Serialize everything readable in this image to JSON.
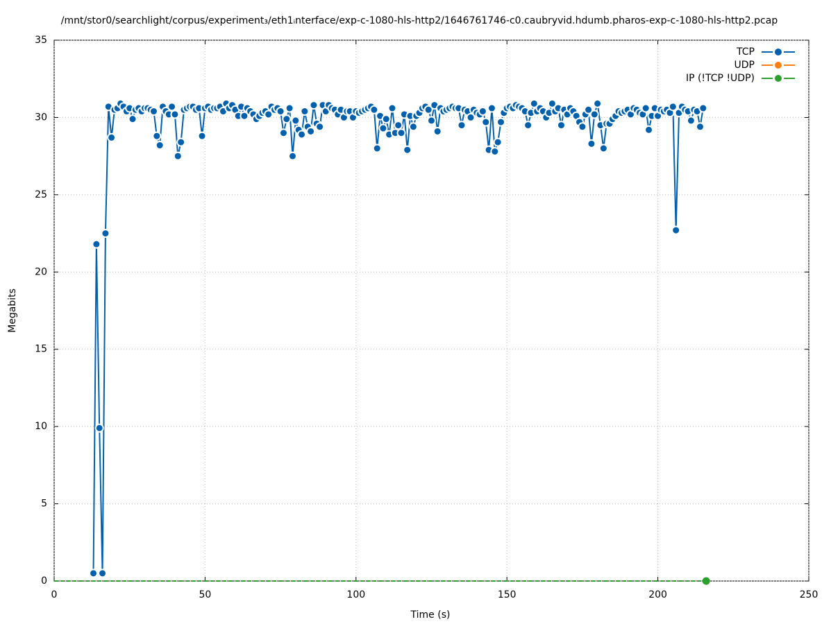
{
  "chart_data": {
    "type": "line",
    "title": "/mnt/stor0/searchlight/corpus/experiment₃/eth1ᵢnterface/exp-c-1080-hls-http2/1646761746-c0.caubryvid.hdumb.pharos-exp-c-1080-hls-http2.pcap",
    "x_label": "Time (s)",
    "y_label": "Megabits",
    "xlim": [
      0,
      250
    ],
    "xticks": [
      0,
      50,
      100,
      150,
      200,
      250
    ],
    "ylim": [
      0,
      35
    ],
    "yticks": [
      0,
      5,
      10,
      15,
      20,
      25,
      30,
      35
    ],
    "grid": true,
    "legend": "top-right",
    "series": [
      {
        "name": "TCP",
        "color": "#0060ad",
        "x": [
          13,
          14,
          15,
          16,
          17,
          18,
          19,
          20,
          21,
          22,
          23,
          24,
          25,
          26,
          27,
          28,
          29,
          30,
          31,
          32,
          33,
          34,
          35,
          36,
          37,
          38,
          39,
          40,
          41,
          42,
          43,
          44,
          45,
          46,
          47,
          48,
          49,
          50,
          51,
          52,
          53,
          54,
          55,
          56,
          57,
          58,
          59,
          60,
          61,
          62,
          63,
          64,
          65,
          66,
          67,
          68,
          69,
          70,
          71,
          72,
          73,
          74,
          75,
          76,
          77,
          78,
          79,
          80,
          81,
          82,
          83,
          84,
          85,
          86,
          87,
          88,
          89,
          90,
          91,
          92,
          93,
          94,
          95,
          96,
          97,
          98,
          99,
          100,
          101,
          102,
          103,
          104,
          105,
          106,
          107,
          108,
          109,
          110,
          111,
          112,
          113,
          114,
          115,
          116,
          117,
          118,
          119,
          120,
          121,
          122,
          123,
          124,
          125,
          126,
          127,
          128,
          129,
          130,
          131,
          132,
          133,
          134,
          135,
          136,
          137,
          138,
          139,
          140,
          141,
          142,
          143,
          144,
          145,
          146,
          147,
          148,
          149,
          150,
          151,
          152,
          153,
          154,
          155,
          156,
          157,
          158,
          159,
          160,
          161,
          162,
          163,
          164,
          165,
          166,
          167,
          168,
          169,
          170,
          171,
          172,
          173,
          174,
          175,
          176,
          177,
          178,
          179,
          180,
          181,
          182,
          183,
          184,
          185,
          186,
          187,
          188,
          189,
          190,
          191,
          192,
          193,
          194,
          195,
          196,
          197,
          198,
          199,
          200,
          201,
          202,
          203,
          204,
          205,
          206,
          207,
          208,
          209,
          210,
          211,
          212,
          213,
          214,
          215
        ],
        "values": [
          0.5,
          21.8,
          9.9,
          0.5,
          22.5,
          30.7,
          28.7,
          30.5,
          30.6,
          30.9,
          30.7,
          30.4,
          30.6,
          29.9,
          30.5,
          30.6,
          30.4,
          30.6,
          30.6,
          30.5,
          30.4,
          28.8,
          28.2,
          30.7,
          30.4,
          30.2,
          30.7,
          30.2,
          27.5,
          28.4,
          30.5,
          30.6,
          30.7,
          30.7,
          30.5,
          30.6,
          28.8,
          30.6,
          30.7,
          30.5,
          30.6,
          30.6,
          30.7,
          30.4,
          30.9,
          30.6,
          30.8,
          30.5,
          30.1,
          30.7,
          30.1,
          30.6,
          30.4,
          30.2,
          29.9,
          30.1,
          30.3,
          30.4,
          30.2,
          30.7,
          30.5,
          30.6,
          30.4,
          29.0,
          29.9,
          30.6,
          27.5,
          29.8,
          29.2,
          28.9,
          30.4,
          29.4,
          29.1,
          30.8,
          29.6,
          29.4,
          30.8,
          30.4,
          30.8,
          30.6,
          30.5,
          30.2,
          30.5,
          30.0,
          30.4,
          30.4,
          30.0,
          30.4,
          30.3,
          30.4,
          30.5,
          30.6,
          30.7,
          30.5,
          28.0,
          30.1,
          29.3,
          29.9,
          28.9,
          30.6,
          29.0,
          29.5,
          29.0,
          30.2,
          27.9,
          30.1,
          29.4,
          30.1,
          30.3,
          30.6,
          30.7,
          30.5,
          29.8,
          30.8,
          29.1,
          30.6,
          30.4,
          30.5,
          30.6,
          30.7,
          30.6,
          30.6,
          29.5,
          30.5,
          30.4,
          30.0,
          30.5,
          30.3,
          30.2,
          30.4,
          29.7,
          27.9,
          30.6,
          27.8,
          28.4,
          29.7,
          30.3,
          30.6,
          30.7,
          30.6,
          30.8,
          30.7,
          30.6,
          30.4,
          29.5,
          30.3,
          30.9,
          30.4,
          30.6,
          30.4,
          30.0,
          30.3,
          30.9,
          30.4,
          30.6,
          29.5,
          30.5,
          30.2,
          30.6,
          30.4,
          30.1,
          29.7,
          29.4,
          30.2,
          30.5,
          28.3,
          30.2,
          30.9,
          29.5,
          28.0,
          29.6,
          29.6,
          29.9,
          30.1,
          30.4,
          30.3,
          30.4,
          30.5,
          30.2,
          30.6,
          30.5,
          30.3,
          30.2,
          30.6,
          29.2,
          30.1,
          30.6,
          30.1,
          30.5,
          30.4,
          30.5,
          30.3,
          30.7,
          22.7,
          30.3,
          30.7,
          30.5,
          30.4,
          29.8,
          30.5,
          30.4,
          29.4,
          30.6
        ]
      },
      {
        "name": "UDP",
        "color": "#ff7f0e",
        "x": [],
        "values": []
      },
      {
        "name": "IP (!TCP  !UDP)",
        "color": "#2ca02c",
        "x": [
          0,
          4,
          8,
          12,
          16,
          20,
          24,
          28,
          32,
          36,
          40,
          44,
          48,
          52,
          56,
          60,
          64,
          68,
          72,
          76,
          80,
          84,
          88,
          92,
          96,
          100,
          104,
          108,
          112,
          116,
          120,
          124,
          128,
          132,
          136,
          140,
          144,
          148,
          152,
          156,
          160,
          164,
          168,
          172,
          176,
          180,
          184,
          188,
          192,
          196,
          200,
          204,
          208,
          212,
          216
        ],
        "values": [
          0,
          0,
          0,
          0,
          0,
          0,
          0,
          0,
          0,
          0,
          0,
          0,
          0,
          0,
          0,
          0,
          0,
          0,
          0,
          0,
          0,
          0,
          0,
          0,
          0,
          0,
          0,
          0,
          0,
          0,
          0,
          0,
          0,
          0,
          0,
          0,
          0,
          0,
          0,
          0,
          0,
          0,
          0,
          0,
          0,
          0,
          0,
          0,
          0,
          0,
          0,
          0,
          0,
          0,
          0
        ]
      }
    ]
  }
}
